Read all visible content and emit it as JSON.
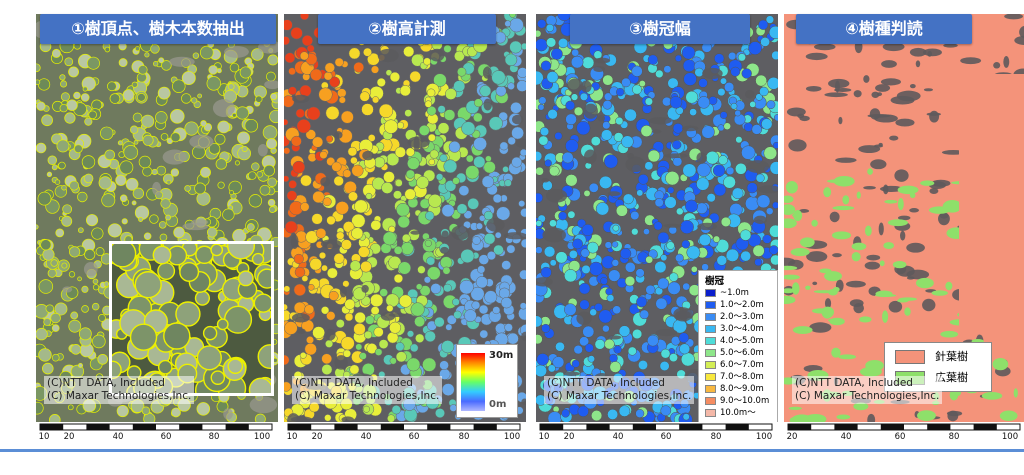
{
  "panels": [
    {
      "title": "①樹頂点、樹木本数抽出",
      "credit": [
        "(C)NTT DATA, Included",
        "(C) Maxar Technologies,Inc."
      ],
      "scale_ticks": [
        "10",
        "20",
        "40",
        "60",
        "80",
        "100"
      ],
      "overlay_color": "#e6f000"
    },
    {
      "title": "②樹高計測",
      "credit": [
        "(C)NTT DATA, Included",
        "(C) Maxar Technologies,Inc."
      ],
      "scale_ticks": [
        "10",
        "20",
        "40",
        "60",
        "80",
        "100"
      ],
      "legend": {
        "max": "30m",
        "min": "0m"
      }
    },
    {
      "title": "③樹冠幅",
      "credit": [
        "(C)NTT DATA, Included",
        "(C) Maxar Technologies,Inc."
      ],
      "scale_ticks": [
        "10",
        "20",
        "40",
        "60",
        "80",
        "100"
      ],
      "legend": {
        "title": "樹冠",
        "items": [
          {
            "label": "~1.0m",
            "color": "#0a1ecc"
          },
          {
            "label": "1.0～2.0m",
            "color": "#1f5cf0"
          },
          {
            "label": "2.0～3.0m",
            "color": "#3a8cf4"
          },
          {
            "label": "3.0～4.0m",
            "color": "#39b8f2"
          },
          {
            "label": "4.0～5.0m",
            "color": "#4fdcd8"
          },
          {
            "label": "5.0～6.0m",
            "color": "#8ee68a"
          },
          {
            "label": "6.0～7.0m",
            "color": "#d4ee55"
          },
          {
            "label": "7.0～8.0m",
            "color": "#f8e83e"
          },
          {
            "label": "8.0～9.0m",
            "color": "#f8b840"
          },
          {
            "label": "9.0～10.0m",
            "color": "#f58d62"
          },
          {
            "label": "10.0m～",
            "color": "#f4b8a8"
          }
        ]
      }
    },
    {
      "title": "④樹種判読",
      "credit": [
        "(C)NTT DATA, Included",
        "(C) Maxar Technologies,Inc."
      ],
      "scale_ticks": [
        "20",
        "40",
        "60",
        "80",
        "100"
      ],
      "legend": {
        "items": [
          {
            "label": "針葉樹",
            "color": "#f4937a"
          },
          {
            "label": "広葉樹",
            "color": "#8ee06a"
          }
        ]
      }
    }
  ]
}
